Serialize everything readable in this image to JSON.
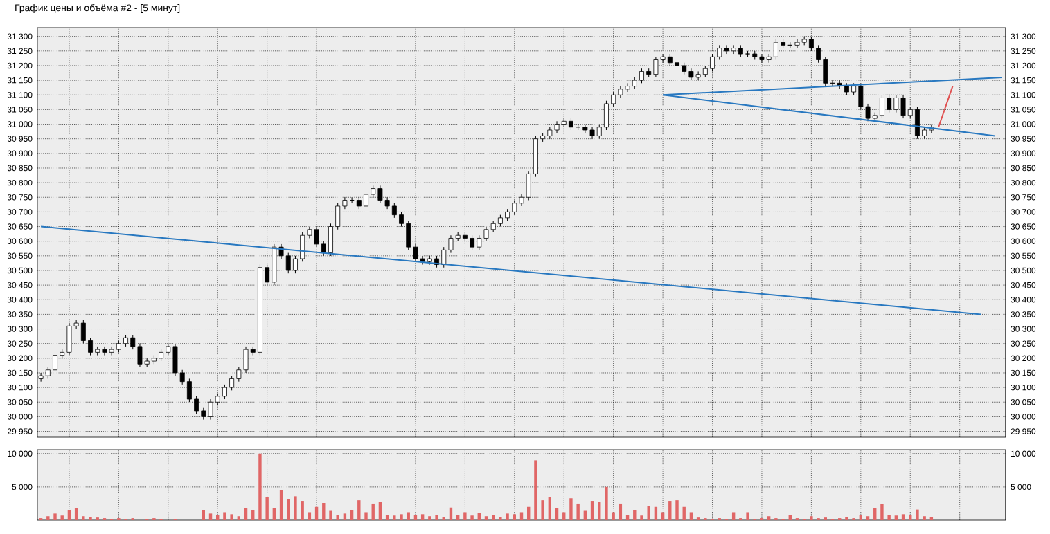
{
  "chart_data": [
    {
      "type": "candlestick",
      "title": "График цены и объёма #2 - [5 минут]",
      "color": "#000000",
      "grid": true,
      "categories": [
        null,
        null,
        null,
        null,
        null,
        null,
        null,
        null,
        null,
        null,
        null,
        null,
        null,
        null,
        null,
        null,
        null,
        null,
        null,
        null,
        null,
        null,
        null,
        null,
        null,
        null,
        null,
        null,
        null,
        null,
        null,
        null,
        null,
        null,
        null,
        null,
        null,
        null,
        null,
        null,
        null,
        null,
        null,
        null,
        null,
        null,
        null,
        null,
        null,
        null,
        null,
        null,
        null,
        null,
        null,
        null,
        null,
        null,
        null,
        null,
        null,
        null,
        null,
        null,
        null,
        null,
        null,
        null,
        null,
        null,
        null,
        null,
        null,
        null,
        null,
        null,
        null,
        null,
        null,
        null,
        null,
        null,
        null,
        null,
        null,
        null,
        null,
        null,
        null,
        null,
        null,
        null,
        null,
        null,
        null,
        null,
        null,
        null,
        null,
        null,
        null,
        null,
        null,
        null,
        null,
        null,
        null,
        null,
        null,
        null,
        null,
        null,
        null,
        null,
        null,
        null,
        null,
        null,
        null,
        null,
        null,
        null,
        null,
        null,
        null,
        null,
        null,
        null,
        null,
        null,
        null,
        null,
        null,
        null,
        null,
        null,
        null
      ],
      "ohlc": [
        [
          30130,
          30150,
          30120,
          30140
        ],
        [
          30140,
          30170,
          30130,
          30160
        ],
        [
          30160,
          30220,
          30150,
          30210
        ],
        [
          30210,
          30230,
          30200,
          30220
        ],
        [
          30220,
          30320,
          30210,
          30310
        ],
        [
          30310,
          30330,
          30300,
          30320
        ],
        [
          30320,
          30330,
          30250,
          30260
        ],
        [
          30260,
          30270,
          30210,
          30220
        ],
        [
          30220,
          30240,
          30210,
          30230
        ],
        [
          30230,
          30240,
          30210,
          30220
        ],
        [
          30220,
          30240,
          30210,
          30230
        ],
        [
          30230,
          30260,
          30220,
          30250
        ],
        [
          30250,
          30280,
          30240,
          30270
        ],
        [
          30270,
          30280,
          30230,
          30240
        ],
        [
          30240,
          30250,
          30170,
          30180
        ],
        [
          30180,
          30200,
          30170,
          30190
        ],
        [
          30190,
          30210,
          30180,
          30200
        ],
        [
          30200,
          30230,
          30190,
          30220
        ],
        [
          30220,
          30250,
          30210,
          30240
        ],
        [
          30240,
          30250,
          30140,
          30150
        ],
        [
          30150,
          30160,
          30110,
          30120
        ],
        [
          30120,
          30130,
          30050,
          30060
        ],
        [
          30060,
          30070,
          30010,
          30020
        ],
        [
          30020,
          30030,
          29990,
          30000
        ],
        [
          30000,
          30060,
          29990,
          30050
        ],
        [
          30050,
          30080,
          30040,
          30070
        ],
        [
          30070,
          30110,
          30060,
          30100
        ],
        [
          30100,
          30140,
          30090,
          30130
        ],
        [
          30130,
          30170,
          30120,
          30160
        ],
        [
          30160,
          30240,
          30150,
          30230
        ],
        [
          30230,
          30240,
          30210,
          30220
        ],
        [
          30220,
          30520,
          30210,
          30510
        ],
        [
          30510,
          30520,
          30450,
          30460
        ],
        [
          30460,
          30590,
          30450,
          30580
        ],
        [
          30580,
          30590,
          30540,
          30550
        ],
        [
          30550,
          30560,
          30490,
          30500
        ],
        [
          30500,
          30550,
          30490,
          30540
        ],
        [
          30540,
          30630,
          30530,
          30620
        ],
        [
          30620,
          30650,
          30610,
          30640
        ],
        [
          30640,
          30650,
          30580,
          30590
        ],
        [
          30590,
          30600,
          30550,
          30560
        ],
        [
          30560,
          30660,
          30550,
          30650
        ],
        [
          30650,
          30730,
          30640,
          30720
        ],
        [
          30720,
          30750,
          30710,
          30740
        ],
        [
          30740,
          30750,
          30730,
          30740
        ],
        [
          30740,
          30750,
          30710,
          30720
        ],
        [
          30720,
          30770,
          30710,
          30760
        ],
        [
          30760,
          30790,
          30750,
          30780
        ],
        [
          30780,
          30790,
          30730,
          30740
        ],
        [
          30740,
          30750,
          30710,
          30720
        ],
        [
          30720,
          30730,
          30680,
          30690
        ],
        [
          30690,
          30700,
          30650,
          30660
        ],
        [
          30660,
          30670,
          30570,
          30580
        ],
        [
          30580,
          30590,
          30530,
          30540
        ],
        [
          30540,
          30550,
          30520,
          30530
        ],
        [
          30530,
          30550,
          30520,
          30540
        ],
        [
          30540,
          30550,
          30510,
          30520
        ],
        [
          30520,
          30580,
          30510,
          30570
        ],
        [
          30570,
          30620,
          30560,
          30610
        ],
        [
          30610,
          30630,
          30600,
          30620
        ],
        [
          30620,
          30630,
          30600,
          30610
        ],
        [
          30610,
          30620,
          30570,
          30580
        ],
        [
          30580,
          30620,
          30570,
          30610
        ],
        [
          30610,
          30650,
          30600,
          30640
        ],
        [
          30640,
          30670,
          30630,
          30660
        ],
        [
          30660,
          30690,
          30650,
          30680
        ],
        [
          30680,
          30710,
          30670,
          30700
        ],
        [
          30700,
          30740,
          30690,
          30730
        ],
        [
          30730,
          30760,
          30720,
          30750
        ],
        [
          30750,
          30840,
          30740,
          30830
        ],
        [
          30830,
          30960,
          30820,
          30950
        ],
        [
          30950,
          30970,
          30940,
          30960
        ],
        [
          30960,
          30990,
          30950,
          30980
        ],
        [
          30980,
          31010,
          30970,
          31000
        ],
        [
          31000,
          31020,
          30990,
          31010
        ],
        [
          31010,
          31020,
          30980,
          30990
        ],
        [
          30990,
          31000,
          30980,
          30990
        ],
        [
          30990,
          31000,
          30970,
          30980
        ],
        [
          30980,
          30990,
          30950,
          30960
        ],
        [
          30960,
          31000,
          30950,
          30990
        ],
        [
          30990,
          31080,
          30980,
          31070
        ],
        [
          31070,
          31110,
          31060,
          31100
        ],
        [
          31100,
          31130,
          31090,
          31120
        ],
        [
          31120,
          31140,
          31110,
          31130
        ],
        [
          31130,
          31160,
          31120,
          31150
        ],
        [
          31150,
          31190,
          31140,
          31180
        ],
        [
          31180,
          31190,
          31160,
          31170
        ],
        [
          31170,
          31230,
          31160,
          31220
        ],
        [
          31220,
          31240,
          31210,
          31230
        ],
        [
          31230,
          31240,
          31200,
          31210
        ],
        [
          31210,
          31220,
          31190,
          31200
        ],
        [
          31200,
          31210,
          31170,
          31180
        ],
        [
          31180,
          31190,
          31150,
          31160
        ],
        [
          31160,
          31180,
          31150,
          31170
        ],
        [
          31170,
          31200,
          31160,
          31190
        ],
        [
          31190,
          31240,
          31180,
          31230
        ],
        [
          31230,
          31270,
          31220,
          31260
        ],
        [
          31260,
          31270,
          31240,
          31250
        ],
        [
          31250,
          31270,
          31240,
          31260
        ],
        [
          31260,
          31270,
          31230,
          31240
        ],
        [
          31240,
          31250,
          31230,
          31240
        ],
        [
          31240,
          31250,
          31220,
          31230
        ],
        [
          31230,
          31240,
          31210,
          31220
        ],
        [
          31220,
          31240,
          31210,
          31230
        ],
        [
          31230,
          31290,
          31220,
          31280
        ],
        [
          31280,
          31290,
          31260,
          31270
        ],
        [
          31270,
          31280,
          31260,
          31270
        ],
        [
          31270,
          31290,
          31260,
          31280
        ],
        [
          31280,
          31300,
          31270,
          31290
        ],
        [
          31290,
          31300,
          31250,
          31260
        ],
        [
          31260,
          31270,
          31210,
          31220
        ],
        [
          31220,
          31230,
          31130,
          31140
        ],
        [
          31140,
          31150,
          31130,
          31140
        ],
        [
          31140,
          31150,
          31120,
          31130
        ],
        [
          31130,
          31140,
          31100,
          31110
        ],
        [
          31110,
          31140,
          31100,
          31130
        ],
        [
          31130,
          31140,
          31050,
          31060
        ],
        [
          31060,
          31070,
          31010,
          31020
        ],
        [
          31020,
          31040,
          31010,
          31030
        ],
        [
          31030,
          31100,
          31020,
          31090
        ],
        [
          31090,
          31100,
          31040,
          31050
        ],
        [
          31050,
          31100,
          31040,
          31090
        ],
        [
          31090,
          31100,
          31020,
          31030
        ],
        [
          31030,
          31060,
          31020,
          31050
        ],
        [
          31050,
          31060,
          30950,
          30960
        ],
        [
          30960,
          30990,
          30950,
          30980
        ],
        [
          30980,
          31000,
          30970,
          30990
        ],
        null,
        null,
        null,
        null,
        null,
        null,
        null,
        null,
        null,
        null
      ],
      "series": [
        {
          "type": "line",
          "color": "#2878c0",
          "values": [
            30650,
            null,
            null,
            null,
            null,
            null,
            null,
            null,
            null,
            null,
            null,
            null,
            null,
            null,
            null,
            null,
            null,
            null,
            null,
            null,
            null,
            null,
            null,
            null,
            null,
            null,
            null,
            null,
            null,
            null,
            null,
            null,
            null,
            null,
            null,
            null,
            null,
            null,
            null,
            null,
            null,
            null,
            null,
            null,
            null,
            null,
            null,
            null,
            null,
            null,
            null,
            null,
            null,
            null,
            null,
            null,
            null,
            null,
            null,
            null,
            null,
            null,
            null,
            null,
            null,
            null,
            null,
            null,
            null,
            null,
            null,
            null,
            null,
            null,
            null,
            null,
            null,
            null,
            null,
            null,
            null,
            null,
            null,
            null,
            null,
            null,
            null,
            null,
            null,
            null,
            null,
            null,
            null,
            null,
            null,
            null,
            null,
            null,
            null,
            null,
            null,
            null,
            null,
            null,
            null,
            null,
            null,
            null,
            null,
            null,
            null,
            null,
            null,
            null,
            null,
            null,
            null,
            null,
            null,
            null,
            null,
            null,
            null,
            null,
            null,
            null,
            null,
            null,
            null,
            null,
            null,
            null,
            null,
            30350,
            null,
            null,
            null
          ]
        },
        {
          "type": "line",
          "color": "#2878c0",
          "values": [
            null,
            null,
            null,
            null,
            null,
            null,
            null,
            null,
            null,
            null,
            null,
            null,
            null,
            null,
            null,
            null,
            null,
            null,
            null,
            null,
            null,
            null,
            null,
            null,
            null,
            null,
            null,
            null,
            null,
            null,
            null,
            null,
            null,
            null,
            null,
            null,
            null,
            null,
            null,
            null,
            null,
            null,
            null,
            null,
            null,
            null,
            null,
            null,
            null,
            null,
            null,
            null,
            null,
            null,
            null,
            null,
            null,
            null,
            null,
            null,
            null,
            null,
            null,
            null,
            null,
            null,
            null,
            null,
            null,
            null,
            null,
            null,
            null,
            null,
            null,
            null,
            null,
            null,
            null,
            null,
            null,
            null,
            null,
            null,
            null,
            null,
            null,
            null,
            31100,
            null,
            null,
            null,
            null,
            null,
            null,
            null,
            null,
            null,
            null,
            null,
            null,
            null,
            null,
            null,
            null,
            null,
            null,
            null,
            null,
            null,
            null,
            null,
            null,
            null,
            null,
            null,
            null,
            null,
            null,
            null,
            null,
            null,
            null,
            null,
            null,
            null,
            null,
            null,
            null,
            null,
            null,
            null,
            null,
            null,
            null,
            null,
            31160
          ]
        },
        {
          "type": "line",
          "color": "#2878c0",
          "values": [
            null,
            null,
            null,
            null,
            null,
            null,
            null,
            null,
            null,
            null,
            null,
            null,
            null,
            null,
            null,
            null,
            null,
            null,
            null,
            null,
            null,
            null,
            null,
            null,
            null,
            null,
            null,
            null,
            null,
            null,
            null,
            null,
            null,
            null,
            null,
            null,
            null,
            null,
            null,
            null,
            null,
            null,
            null,
            null,
            null,
            null,
            null,
            null,
            null,
            null,
            null,
            null,
            null,
            null,
            null,
            null,
            null,
            null,
            null,
            null,
            null,
            null,
            null,
            null,
            null,
            null,
            null,
            null,
            null,
            null,
            null,
            null,
            null,
            null,
            null,
            null,
            null,
            null,
            null,
            null,
            null,
            null,
            null,
            null,
            null,
            null,
            null,
            null,
            31100,
            null,
            null,
            null,
            null,
            null,
            null,
            null,
            null,
            null,
            null,
            null,
            null,
            null,
            null,
            null,
            null,
            null,
            null,
            null,
            null,
            null,
            null,
            null,
            null,
            null,
            null,
            null,
            null,
            null,
            null,
            null,
            null,
            null,
            null,
            null,
            null,
            null,
            null,
            null,
            null,
            null,
            null,
            null,
            null,
            null,
            null,
            30960,
            null
          ]
        },
        {
          "type": "line",
          "color": "#e05050",
          "values": [
            null,
            null,
            null,
            null,
            null,
            null,
            null,
            null,
            null,
            null,
            null,
            null,
            null,
            null,
            null,
            null,
            null,
            null,
            null,
            null,
            null,
            null,
            null,
            null,
            null,
            null,
            null,
            null,
            null,
            null,
            null,
            null,
            null,
            null,
            null,
            null,
            null,
            null,
            null,
            null,
            null,
            null,
            null,
            null,
            null,
            null,
            null,
            null,
            null,
            null,
            null,
            null,
            null,
            null,
            null,
            null,
            null,
            null,
            null,
            null,
            null,
            null,
            null,
            null,
            null,
            null,
            null,
            null,
            null,
            null,
            null,
            null,
            null,
            null,
            null,
            null,
            null,
            null,
            null,
            null,
            null,
            null,
            null,
            null,
            null,
            null,
            null,
            null,
            null,
            null,
            null,
            null,
            null,
            null,
            null,
            null,
            null,
            null,
            null,
            null,
            null,
            null,
            null,
            null,
            null,
            null,
            null,
            null,
            null,
            null,
            null,
            null,
            null,
            null,
            null,
            null,
            null,
            null,
            null,
            null,
            null,
            null,
            null,
            null,
            null,
            null,
            null,
            30990,
            null,
            31130,
            null,
            null,
            null,
            null,
            null,
            null,
            null
          ]
        }
      ],
      "ylim": [
        29930,
        31330
      ],
      "yticks": [
        {
          "value": 29950,
          "label": "29 950"
        },
        {
          "value": 30000,
          "label": "30 000"
        },
        {
          "value": 30050,
          "label": "30 050"
        },
        {
          "value": 30100,
          "label": "30 100"
        },
        {
          "value": 30150,
          "label": "30 150"
        },
        {
          "value": 30200,
          "label": "30 200"
        },
        {
          "value": 30250,
          "label": "30 250"
        },
        {
          "value": 30300,
          "label": "30 300"
        },
        {
          "value": 30350,
          "label": "30 350"
        },
        {
          "value": 30400,
          "label": "30 400"
        },
        {
          "value": 30450,
          "label": "30 450"
        },
        {
          "value": 30500,
          "label": "30 500"
        },
        {
          "value": 30550,
          "label": "30 550"
        },
        {
          "value": 30600,
          "label": "30 600"
        },
        {
          "value": 30650,
          "label": "30 650"
        },
        {
          "value": 30700,
          "label": "30 700"
        },
        {
          "value": 30750,
          "label": "30 750"
        },
        {
          "value": 30800,
          "label": "30 800"
        },
        {
          "value": 30850,
          "label": "30 850"
        },
        {
          "value": 30900,
          "label": "30 900"
        },
        {
          "value": 30950,
          "label": "30 950"
        },
        {
          "value": 31000,
          "label": "31 000"
        },
        {
          "value": 31050,
          "label": "31 050"
        },
        {
          "value": 31100,
          "label": "31 100"
        },
        {
          "value": 31150,
          "label": "31 150"
        },
        {
          "value": 31200,
          "label": "31 200"
        },
        {
          "value": 31250,
          "label": "31 250"
        },
        {
          "value": 31300,
          "label": "31 300"
        }
      ],
      "y2lim": [
        29930,
        31330
      ],
      "y2ticks": [
        {
          "value": 29950,
          "label": "29 950"
        },
        {
          "value": 30000,
          "label": "30 000"
        },
        {
          "value": 30050,
          "label": "30 050"
        },
        {
          "value": 30100,
          "label": "30 100"
        },
        {
          "value": 30150,
          "label": "30 150"
        },
        {
          "value": 30200,
          "label": "30 200"
        },
        {
          "value": 30250,
          "label": "30 250"
        },
        {
          "value": 30300,
          "label": "30 300"
        },
        {
          "value": 30350,
          "label": "30 350"
        },
        {
          "value": 30400,
          "label": "30 400"
        },
        {
          "value": 30450,
          "label": "30 450"
        },
        {
          "value": 30500,
          "label": "30 500"
        },
        {
          "value": 30550,
          "label": "30 550"
        },
        {
          "value": 30600,
          "label": "30 600"
        },
        {
          "value": 30650,
          "label": "30 650"
        },
        {
          "value": 30700,
          "label": "30 700"
        },
        {
          "value": 30750,
          "label": "30 750"
        },
        {
          "value": 30800,
          "label": "30 800"
        },
        {
          "value": 30850,
          "label": "30 850"
        },
        {
          "value": 30900,
          "label": "30 900"
        },
        {
          "value": 30950,
          "label": "30 950"
        },
        {
          "value": 31000,
          "label": "31 000"
        },
        {
          "value": 31050,
          "label": "31 050"
        },
        {
          "value": 31100,
          "label": "31 100"
        },
        {
          "value": 31150,
          "label": "31 150"
        },
        {
          "value": 31200,
          "label": "31 200"
        },
        {
          "value": 31250,
          "label": "31 250"
        },
        {
          "value": 31300,
          "label": "31 300"
        }
      ]
    },
    {
      "type": "bar",
      "color": "#e06666",
      "grid": true,
      "categories": [
        null,
        null,
        null,
        null,
        null,
        null,
        null,
        null,
        null,
        null,
        null,
        null,
        null,
        null,
        null,
        null,
        null,
        null,
        null,
        null,
        null,
        null,
        null,
        null,
        null,
        null,
        null,
        null,
        null,
        null,
        null,
        null,
        null,
        null,
        null,
        null,
        null,
        null,
        null,
        null,
        null,
        null,
        null,
        null,
        null,
        null,
        null,
        null,
        null,
        null,
        null,
        null,
        null,
        null,
        null,
        null,
        null,
        null,
        null,
        null,
        null,
        null,
        null,
        null,
        null,
        null,
        null,
        null,
        null,
        null,
        null,
        null,
        null,
        null,
        null,
        null,
        null,
        null,
        null,
        null,
        null,
        null,
        null,
        null,
        null,
        null,
        null,
        null,
        null,
        null,
        null,
        null,
        null,
        null,
        null,
        null,
        null,
        null,
        null,
        null,
        null,
        null,
        null,
        null,
        null,
        null,
        null,
        null,
        null,
        null,
        null,
        null,
        null,
        null,
        null,
        null,
        null,
        null,
        null,
        null,
        null,
        null,
        null,
        null,
        null,
        null,
        null,
        null,
        null,
        null,
        null,
        null,
        null,
        null,
        null,
        null,
        null
      ],
      "values": [
        300,
        600,
        1000,
        700,
        1500,
        1800,
        600,
        500,
        400,
        300,
        200,
        300,
        200,
        300,
        null,
        200,
        300,
        200,
        null,
        200,
        null,
        null,
        null,
        1500,
        1000,
        800,
        1200,
        900,
        600,
        1800,
        1500,
        10000,
        3500,
        1800,
        4500,
        3200,
        3600,
        2800,
        1200,
        2000,
        2600,
        1400,
        800,
        1000,
        1500,
        3000,
        1200,
        2500,
        2700,
        800,
        700,
        900,
        1200,
        800,
        900,
        600,
        800,
        500,
        1900,
        800,
        1200,
        700,
        1100,
        600,
        800,
        500,
        1000,
        900,
        1200,
        2000,
        9000,
        3000,
        3500,
        1800,
        1200,
        3300,
        2500,
        1400,
        2800,
        2700,
        5000,
        1200,
        2500,
        800,
        1500,
        700,
        2100,
        2000,
        1200,
        2800,
        3000,
        2000,
        1200,
        400,
        300,
        200,
        300,
        200,
        1200,
        300,
        1200,
        200,
        300,
        600,
        300,
        200,
        800,
        300,
        200,
        600,
        300,
        400,
        200,
        300,
        500,
        300,
        800,
        600,
        1800,
        2400,
        800,
        700,
        900,
        800,
        1600,
        600,
        500,
        null,
        null,
        null,
        null,
        null,
        null,
        null,
        null,
        null,
        null
      ],
      "ylim": [
        0,
        10600
      ],
      "yticks": [
        {
          "value": 5000,
          "label": "5 000"
        },
        {
          "value": 10000,
          "label": "10 000"
        }
      ],
      "y2lim": [
        0,
        10600
      ],
      "y2ticks": [
        {
          "value": 5000,
          "label": "5 000"
        },
        {
          "value": 10000,
          "label": "10 000"
        }
      ]
    }
  ]
}
